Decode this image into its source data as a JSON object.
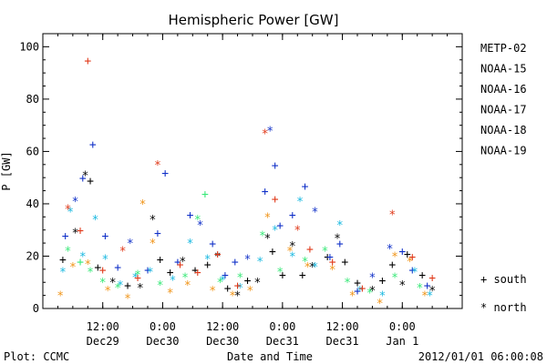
{
  "chart_data": {
    "type": "scatter",
    "title": "Hemispheric Power [GW]",
    "ylabel": "P [GW]",
    "xlabel": "Date and Time",
    "ylim": [
      0,
      105
    ],
    "yticks": [
      0,
      20,
      40,
      60,
      80,
      100
    ],
    "xlim": [
      "2011-12-29 00:00",
      "2012-01-01 12:00"
    ],
    "xticks": [
      {
        "t": "2011-12-29 12:00",
        "time": "12:00",
        "date": "Dec29"
      },
      {
        "t": "2011-12-30 00:00",
        "time": "0:00",
        "date": "Dec30"
      },
      {
        "t": "2011-12-30 12:00",
        "time": "12:00",
        "date": "Dec30"
      },
      {
        "t": "2011-12-31 00:00",
        "time": "0:00",
        "date": "Dec31"
      },
      {
        "t": "2011-12-31 12:00",
        "time": "12:00",
        "date": "Dec31"
      },
      {
        "t": "2012-01-01 00:00",
        "time": "0:00",
        "date": "Jan 1"
      }
    ],
    "marker_legend": [
      {
        "marker": "+",
        "label": "south"
      },
      {
        "marker": "*",
        "label": "north"
      }
    ],
    "footer_left": "Plot: CCMC",
    "footer_right": "2012/01/01 06:00:08",
    "series": [
      {
        "name": "METP-02",
        "color": "#000000",
        "points": [
          {
            "x": "2011-12-29 04:00",
            "y": 19,
            "m": "+"
          },
          {
            "x": "2011-12-29 06:30",
            "y": 29,
            "m": "*"
          },
          {
            "x": "2011-12-29 08:30",
            "y": 51,
            "m": "*"
          },
          {
            "x": "2011-12-29 09:30",
            "y": 49,
            "m": "+"
          },
          {
            "x": "2011-12-29 11:00",
            "y": 16,
            "m": "+"
          },
          {
            "x": "2011-12-29 14:00",
            "y": 10,
            "m": "*"
          },
          {
            "x": "2011-12-29 17:00",
            "y": 9,
            "m": "+"
          },
          {
            "x": "2011-12-29 19:30",
            "y": 8,
            "m": "*"
          },
          {
            "x": "2011-12-29 22:00",
            "y": 34,
            "m": "*"
          },
          {
            "x": "2011-12-29 23:30",
            "y": 19,
            "m": "+"
          },
          {
            "x": "2011-12-30 01:30",
            "y": 14,
            "m": "+"
          },
          {
            "x": "2011-12-30 04:00",
            "y": 18,
            "m": "*"
          },
          {
            "x": "2011-12-30 06:30",
            "y": 15,
            "m": "+"
          },
          {
            "x": "2011-12-30 09:00",
            "y": 17,
            "m": "+"
          },
          {
            "x": "2011-12-30 11:00",
            "y": 20,
            "m": "*"
          },
          {
            "x": "2011-12-30 13:00",
            "y": 8,
            "m": "+"
          },
          {
            "x": "2011-12-30 15:00",
            "y": 5,
            "m": "*"
          },
          {
            "x": "2011-12-30 17:00",
            "y": 11,
            "m": "+"
          },
          {
            "x": "2011-12-30 19:00",
            "y": 10,
            "m": "*"
          },
          {
            "x": "2011-12-30 21:00",
            "y": 27,
            "m": "*"
          },
          {
            "x": "2011-12-30 22:00",
            "y": 22,
            "m": "+"
          },
          {
            "x": "2011-12-31 00:00",
            "y": 13,
            "m": "+"
          },
          {
            "x": "2011-12-31 02:00",
            "y": 24,
            "m": "*"
          },
          {
            "x": "2011-12-31 04:00",
            "y": 13,
            "m": "+"
          },
          {
            "x": "2011-12-31 06:00",
            "y": 16,
            "m": "*"
          },
          {
            "x": "2011-12-31 09:00",
            "y": 20,
            "m": "+"
          },
          {
            "x": "2011-12-31 11:00",
            "y": 27,
            "m": "*"
          },
          {
            "x": "2011-12-31 12:30",
            "y": 18,
            "m": "+"
          },
          {
            "x": "2011-12-31 15:00",
            "y": 10,
            "m": "+"
          },
          {
            "x": "2011-12-31 18:00",
            "y": 7,
            "m": "*"
          },
          {
            "x": "2011-12-31 20:00",
            "y": 11,
            "m": "+"
          },
          {
            "x": "2011-12-31 22:00",
            "y": 17,
            "m": "+"
          },
          {
            "x": "2012-01-01 00:00",
            "y": 9,
            "m": "*"
          },
          {
            "x": "2012-01-01 01:00",
            "y": 21,
            "m": "+"
          },
          {
            "x": "2012-01-01 04:00",
            "y": 13,
            "m": "+"
          },
          {
            "x": "2012-01-01 06:00",
            "y": 7,
            "m": "*"
          }
        ]
      },
      {
        "name": "NOAA-15",
        "color": "#1030c8",
        "points": [
          {
            "x": "2011-12-29 04:30",
            "y": 28,
            "m": "+"
          },
          {
            "x": "2011-12-29 06:30",
            "y": 41,
            "m": "*"
          },
          {
            "x": "2011-12-29 08:00",
            "y": 50,
            "m": "+"
          },
          {
            "x": "2011-12-29 10:00",
            "y": 63,
            "m": "+"
          },
          {
            "x": "2011-12-29 12:30",
            "y": 28,
            "m": "+"
          },
          {
            "x": "2011-12-29 15:00",
            "y": 16,
            "m": "+"
          },
          {
            "x": "2011-12-29 17:30",
            "y": 25,
            "m": "*"
          },
          {
            "x": "2011-12-29 21:00",
            "y": 15,
            "m": "+"
          },
          {
            "x": "2011-12-29 23:00",
            "y": 29,
            "m": "+"
          },
          {
            "x": "2011-12-30 00:30",
            "y": 52,
            "m": "+"
          },
          {
            "x": "2011-12-30 03:00",
            "y": 18,
            "m": "+"
          },
          {
            "x": "2011-12-30 05:30",
            "y": 36,
            "m": "+"
          },
          {
            "x": "2011-12-30 07:30",
            "y": 32,
            "m": "*"
          },
          {
            "x": "2011-12-30 10:00",
            "y": 25,
            "m": "+"
          },
          {
            "x": "2011-12-30 12:30",
            "y": 13,
            "m": "+"
          },
          {
            "x": "2011-12-30 14:30",
            "y": 18,
            "m": "+"
          },
          {
            "x": "2011-12-30 17:00",
            "y": 19,
            "m": "*"
          },
          {
            "x": "2011-12-30 20:30",
            "y": 45,
            "m": "+"
          },
          {
            "x": "2011-12-30 21:30",
            "y": 68,
            "m": "*"
          },
          {
            "x": "2011-12-30 22:30",
            "y": 55,
            "m": "+"
          },
          {
            "x": "2011-12-30 23:30",
            "y": 32,
            "m": "+"
          },
          {
            "x": "2011-12-31 02:00",
            "y": 36,
            "m": "+"
          },
          {
            "x": "2011-12-31 04:30",
            "y": 47,
            "m": "+"
          },
          {
            "x": "2011-12-31 06:30",
            "y": 37,
            "m": "*"
          },
          {
            "x": "2011-12-31 09:30",
            "y": 20,
            "m": "+"
          },
          {
            "x": "2011-12-31 11:30",
            "y": 25,
            "m": "+"
          },
          {
            "x": "2011-12-31 15:00",
            "y": 7,
            "m": "+"
          },
          {
            "x": "2011-12-31 18:00",
            "y": 12,
            "m": "*"
          },
          {
            "x": "2011-12-31 21:30",
            "y": 23,
            "m": "*"
          },
          {
            "x": "2012-01-01 00:00",
            "y": 22,
            "m": "+"
          },
          {
            "x": "2012-01-01 02:00",
            "y": 15,
            "m": "+"
          },
          {
            "x": "2012-01-01 05:00",
            "y": 9,
            "m": "+"
          }
        ]
      },
      {
        "name": "NOAA-16",
        "color": "#18b8e0",
        "points": [
          {
            "x": "2011-12-29 04:00",
            "y": 14,
            "m": "*"
          },
          {
            "x": "2011-12-29 05:30",
            "y": 37,
            "m": "*"
          },
          {
            "x": "2011-12-29 08:00",
            "y": 20,
            "m": "*"
          },
          {
            "x": "2011-12-29 10:30",
            "y": 34,
            "m": "*"
          },
          {
            "x": "2011-12-29 12:30",
            "y": 19,
            "m": "*"
          },
          {
            "x": "2011-12-29 15:30",
            "y": 9,
            "m": "*"
          },
          {
            "x": "2011-12-29 18:30",
            "y": 12,
            "m": "*"
          },
          {
            "x": "2011-12-29 21:30",
            "y": 14,
            "m": "*"
          },
          {
            "x": "2011-12-30 02:00",
            "y": 11,
            "m": "*"
          },
          {
            "x": "2011-12-30 05:30",
            "y": 25,
            "m": "*"
          },
          {
            "x": "2011-12-30 09:00",
            "y": 19,
            "m": "*"
          },
          {
            "x": "2011-12-30 12:00",
            "y": 11,
            "m": "*"
          },
          {
            "x": "2011-12-30 15:30",
            "y": 8,
            "m": "*"
          },
          {
            "x": "2011-12-30 19:30",
            "y": 18,
            "m": "*"
          },
          {
            "x": "2011-12-30 22:30",
            "y": 30,
            "m": "*"
          },
          {
            "x": "2011-12-31 02:00",
            "y": 20,
            "m": "*"
          },
          {
            "x": "2011-12-31 03:30",
            "y": 41,
            "m": "*"
          },
          {
            "x": "2011-12-31 06:30",
            "y": 16,
            "m": "*"
          },
          {
            "x": "2011-12-31 11:30",
            "y": 32,
            "m": "*"
          },
          {
            "x": "2011-12-31 15:30",
            "y": 7,
            "m": "*"
          },
          {
            "x": "2011-12-31 20:00",
            "y": 5,
            "m": "*"
          },
          {
            "x": "2012-01-01 02:30",
            "y": 14,
            "m": "*"
          },
          {
            "x": "2012-01-01 05:30",
            "y": 5,
            "m": "*"
          }
        ]
      },
      {
        "name": "NOAA-17",
        "color": "#38e878",
        "points": [
          {
            "x": "2011-12-29 05:00",
            "y": 22,
            "m": "*"
          },
          {
            "x": "2011-12-29 07:30",
            "y": 18,
            "m": "+"
          },
          {
            "x": "2011-12-29 09:30",
            "y": 14,
            "m": "*"
          },
          {
            "x": "2011-12-29 12:00",
            "y": 10,
            "m": "*"
          },
          {
            "x": "2011-12-29 15:00",
            "y": 8,
            "m": "*"
          },
          {
            "x": "2011-12-29 19:00",
            "y": 13,
            "m": "*"
          },
          {
            "x": "2011-12-29 23:30",
            "y": 9,
            "m": "*"
          },
          {
            "x": "2011-12-30 04:30",
            "y": 12,
            "m": "*"
          },
          {
            "x": "2011-12-30 07:00",
            "y": 34,
            "m": "*"
          },
          {
            "x": "2011-12-30 08:30",
            "y": 44,
            "m": "+"
          },
          {
            "x": "2011-12-30 11:30",
            "y": 10,
            "m": "*"
          },
          {
            "x": "2011-12-30 15:30",
            "y": 12,
            "m": "*"
          },
          {
            "x": "2011-12-30 20:00",
            "y": 28,
            "m": "*"
          },
          {
            "x": "2011-12-30 23:30",
            "y": 14,
            "m": "*"
          },
          {
            "x": "2011-12-31 04:30",
            "y": 18,
            "m": "*"
          },
          {
            "x": "2011-12-31 08:30",
            "y": 22,
            "m": "*"
          },
          {
            "x": "2011-12-31 13:00",
            "y": 10,
            "m": "*"
          },
          {
            "x": "2011-12-31 17:30",
            "y": 6,
            "m": "*"
          },
          {
            "x": "2011-12-31 22:30",
            "y": 12,
            "m": "*"
          },
          {
            "x": "2012-01-01 03:30",
            "y": 8,
            "m": "*"
          }
        ]
      },
      {
        "name": "NOAA-18",
        "color": "#f09418",
        "points": [
          {
            "x": "2011-12-29 03:30",
            "y": 5,
            "m": "*"
          },
          {
            "x": "2011-12-29 06:00",
            "y": 16,
            "m": "*"
          },
          {
            "x": "2011-12-29 09:00",
            "y": 17,
            "m": "*"
          },
          {
            "x": "2011-12-29 13:00",
            "y": 7,
            "m": "*"
          },
          {
            "x": "2011-12-29 17:00",
            "y": 4,
            "m": "*"
          },
          {
            "x": "2011-12-29 20:00",
            "y": 40,
            "m": "*"
          },
          {
            "x": "2011-12-29 22:00",
            "y": 25,
            "m": "*"
          },
          {
            "x": "2011-12-30 01:30",
            "y": 6,
            "m": "*"
          },
          {
            "x": "2011-12-30 05:00",
            "y": 9,
            "m": "*"
          },
          {
            "x": "2011-12-30 10:00",
            "y": 7,
            "m": "*"
          },
          {
            "x": "2011-12-30 14:00",
            "y": 5,
            "m": "*"
          },
          {
            "x": "2011-12-30 17:30",
            "y": 7,
            "m": "*"
          },
          {
            "x": "2011-12-30 21:00",
            "y": 35,
            "m": "*"
          },
          {
            "x": "2011-12-31 01:30",
            "y": 22,
            "m": "*"
          },
          {
            "x": "2011-12-31 05:00",
            "y": 16,
            "m": "*"
          },
          {
            "x": "2011-12-31 10:00",
            "y": 15,
            "m": "*"
          },
          {
            "x": "2011-12-31 14:00",
            "y": 5,
            "m": "*"
          },
          {
            "x": "2011-12-31 19:30",
            "y": 2,
            "m": "*"
          },
          {
            "x": "2011-12-31 22:30",
            "y": 20,
            "m": "*"
          },
          {
            "x": "2012-01-01 01:30",
            "y": 18,
            "m": "*"
          },
          {
            "x": "2012-01-01 04:30",
            "y": 5,
            "m": "*"
          }
        ]
      },
      {
        "name": "NOAA-19",
        "color": "#e03818",
        "points": [
          {
            "x": "2011-12-29 05:00",
            "y": 38,
            "m": "*"
          },
          {
            "x": "2011-12-29 07:30",
            "y": 30,
            "m": "+"
          },
          {
            "x": "2011-12-29 09:00",
            "y": 95,
            "m": "+"
          },
          {
            "x": "2011-12-29 12:00",
            "y": 15,
            "m": "+"
          },
          {
            "x": "2011-12-29 16:00",
            "y": 22,
            "m": "*"
          },
          {
            "x": "2011-12-29 19:00",
            "y": 12,
            "m": "+"
          },
          {
            "x": "2011-12-29 23:00",
            "y": 55,
            "m": "*"
          },
          {
            "x": "2011-12-30 03:30",
            "y": 17,
            "m": "+"
          },
          {
            "x": "2011-12-30 07:00",
            "y": 14,
            "m": "+"
          },
          {
            "x": "2011-12-30 11:00",
            "y": 21,
            "m": "+"
          },
          {
            "x": "2011-12-30 15:00",
            "y": 9,
            "m": "+"
          },
          {
            "x": "2011-12-30 20:30",
            "y": 67,
            "m": "*"
          },
          {
            "x": "2011-12-30 22:30",
            "y": 42,
            "m": "+"
          },
          {
            "x": "2011-12-31 03:00",
            "y": 30,
            "m": "*"
          },
          {
            "x": "2011-12-31 05:30",
            "y": 23,
            "m": "+"
          },
          {
            "x": "2011-12-31 10:00",
            "y": 18,
            "m": "+"
          },
          {
            "x": "2011-12-31 16:00",
            "y": 8,
            "m": "+"
          },
          {
            "x": "2011-12-31 22:00",
            "y": 36,
            "m": "*"
          },
          {
            "x": "2012-01-01 02:00",
            "y": 20,
            "m": "+"
          },
          {
            "x": "2012-01-01 06:00",
            "y": 12,
            "m": "+"
          }
        ]
      }
    ]
  }
}
